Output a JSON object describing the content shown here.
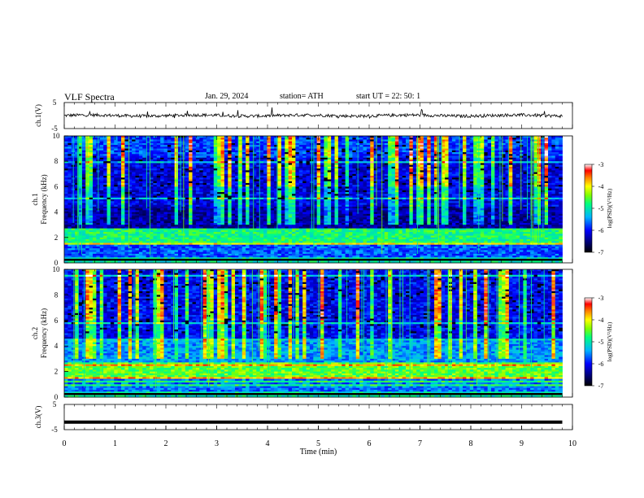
{
  "header": {
    "title": "VLF Spectra",
    "date": "Jan. 29, 2024",
    "station": "station= ATH",
    "start": "start UT = 22: 50: 1"
  },
  "chart_data": [
    {
      "type": "line",
      "ylabel": "ch.1(V)",
      "ylim": [
        -5,
        5
      ],
      "yticks": [
        "5",
        "-5"
      ],
      "description_values": "waveform near 0 V with small spikes",
      "xlim": [
        0,
        10
      ]
    },
    {
      "type": "heatmap",
      "ylabel_top": "ch.1",
      "ylabel": "Frequency (kHz)",
      "ylim": [
        0,
        10
      ],
      "yticks": [
        "0",
        "2",
        "4",
        "6",
        "8",
        "10"
      ],
      "xlim": [
        0,
        10
      ],
      "colorbar": {
        "label": "log(PSD)(V²/Hz)",
        "ticks": [
          "-3",
          "-4",
          "-5",
          "-6",
          "-7"
        ],
        "range": [
          -7,
          -3
        ]
      }
    },
    {
      "type": "heatmap",
      "ylabel_top": "ch.2",
      "ylabel": "Frequency (kHz)",
      "ylim": [
        0,
        10
      ],
      "yticks": [
        "0",
        "2",
        "4",
        "6",
        "8",
        "10"
      ],
      "xlim": [
        0,
        10
      ],
      "colorbar": {
        "label": "log(PSD)(V²/Hz)",
        "ticks": [
          "-3",
          "-4",
          "-5",
          "-6",
          "-7"
        ],
        "range": [
          -7,
          -3
        ]
      }
    },
    {
      "type": "line",
      "ylabel": "ch.3(V)",
      "ylim": [
        -5,
        5
      ],
      "yticks": [
        "5",
        "-5"
      ],
      "constant_value": -2,
      "xlim": [
        0,
        10
      ],
      "xlabel": "Time (min)",
      "xticks": [
        "0",
        "1",
        "2",
        "3",
        "4",
        "5",
        "6",
        "7",
        "8",
        "9",
        "10"
      ]
    }
  ]
}
